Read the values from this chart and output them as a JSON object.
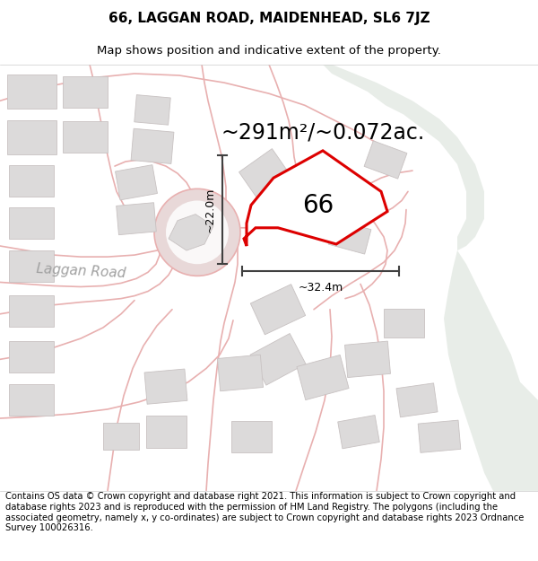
{
  "title": "66, LAGGAN ROAD, MAIDENHEAD, SL6 7JZ",
  "subtitle": "Map shows position and indicative extent of the property.",
  "area_label": "~291m²/~0.072ac.",
  "property_number": "66",
  "dim_vertical": "~22.0m",
  "dim_horizontal": "~32.4m",
  "road_label": "Laggan Road",
  "footer": "Contains OS data © Crown copyright and database right 2021. This information is subject to Crown copyright and database rights 2023 and is reproduced with the permission of HM Land Registry. The polygons (including the associated geometry, namely x, y co-ordinates) are subject to Crown copyright and database rights 2023 Ordnance Survey 100026316.",
  "map_bg": "#faf8f8",
  "green_area_color": "#e8ede8",
  "road_color": "#e8b0b0",
  "road_lw": 1.2,
  "building_color": "#dcdada",
  "building_edge": "#c8c2c2",
  "property_fill": "#ffffff",
  "property_edge": "#dd0000",
  "property_lw": 2.2,
  "dim_color": "#404040",
  "title_fontsize": 11,
  "subtitle_fontsize": 9.5,
  "area_fontsize": 17,
  "number_fontsize": 20,
  "road_label_fontsize": 11,
  "footer_fontsize": 7.2,
  "roundabout_color": "#e8d8d8",
  "roundabout_edge": "#e8b0b0"
}
